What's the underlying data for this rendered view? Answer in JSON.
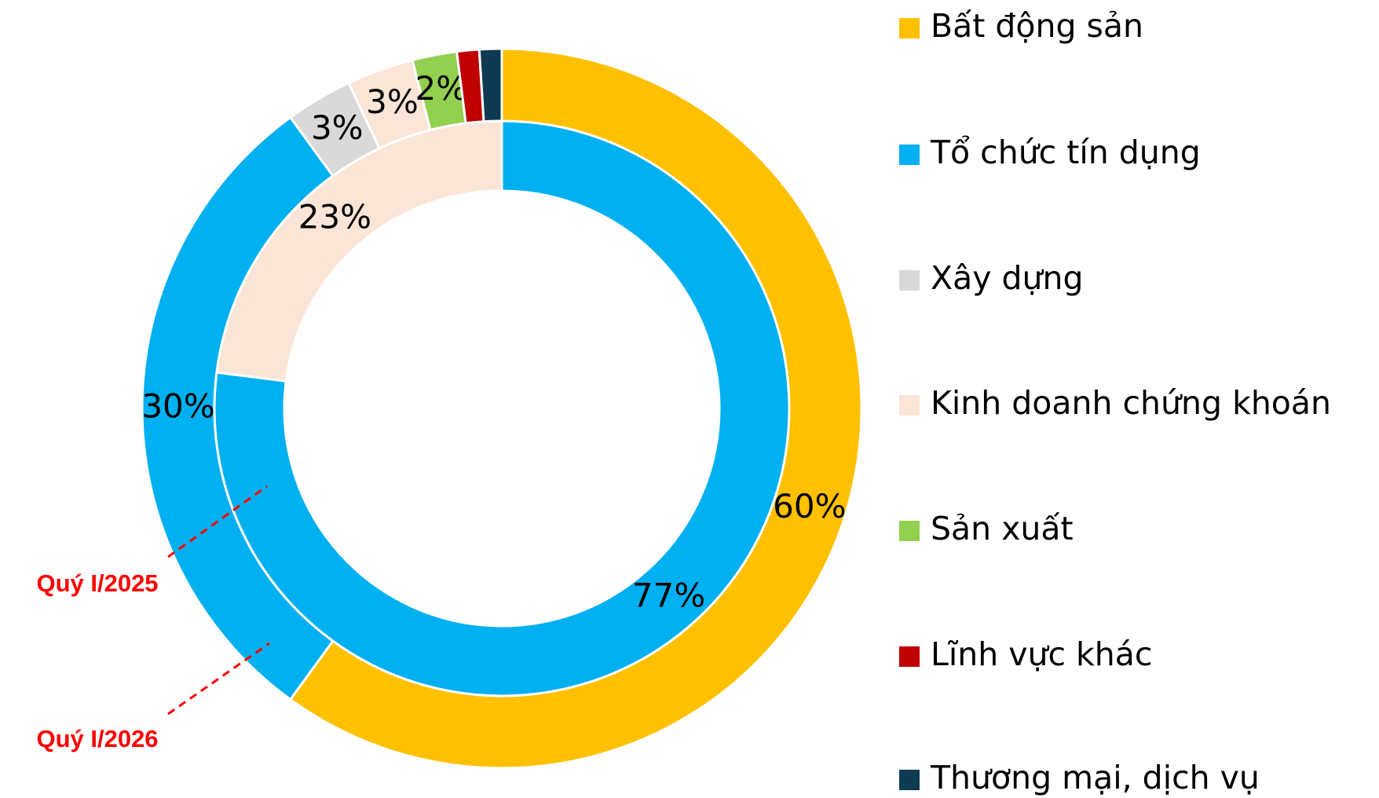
{
  "chart_data": {
    "type": "donut",
    "categories": [
      "Bất động sản",
      "Tổ chức tín dụng",
      "Xây dựng",
      "Kinh doanh chứng khoán",
      "Sản xuất",
      "Lĩnh vực khác",
      "Thương mại, dịch vụ"
    ],
    "colors": [
      "#ffc000",
      "#00b0f0",
      "#d9d9d9",
      "#fbe5d6",
      "#92d050",
      "#c00000",
      "#0e3a52"
    ],
    "series": [
      {
        "name": "Quý I/2025",
        "values": [
          null,
          77,
          null,
          23,
          null,
          null,
          null
        ],
        "value_labels": [
          null,
          "77%",
          null,
          "23%",
          null,
          null,
          null
        ]
      },
      {
        "name": "Quý I/2026",
        "values": [
          60,
          30,
          3,
          3,
          2,
          1,
          1
        ],
        "value_labels": [
          "60%",
          "30%",
          "3%",
          "3%",
          "2%",
          null,
          null
        ]
      }
    ],
    "legend": "right"
  }
}
